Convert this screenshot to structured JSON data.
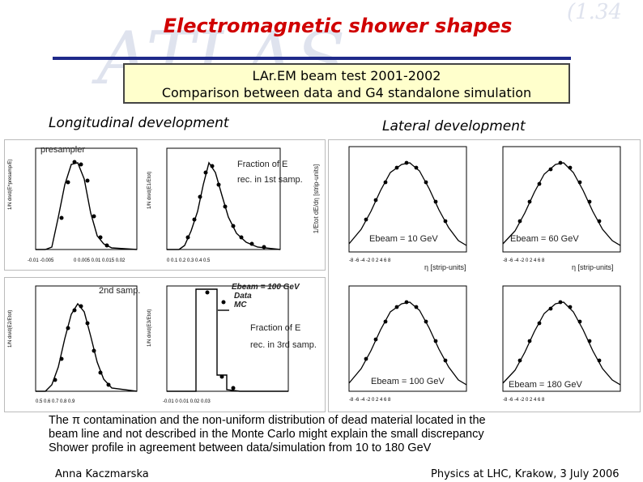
{
  "slide": {
    "title": "Electromagnetic shower shapes",
    "box_line1": "LAr.EM beam test 2001-2002",
    "box_line2": "Comparison between data and G4 standalone simulation",
    "long_heading": "Longitudinal development",
    "lat_heading": "Lateral development",
    "summary_line1": "The π contamination and the non-uniform distribution of dead material located in the",
    "summary_line2": "beam line and not described in the Monte Carlo might explain the small discrepancy",
    "summary_line3": "Shower profile in agreement between data/simulation from 10 to 180 GeV",
    "author": "Anna Kaczmarska",
    "venue": "Physics at LHC, Krakow,  3 July 2006"
  },
  "longitudinal": {
    "presampler_label": "presampler",
    "first_label_line1": "Fraction of E",
    "first_label_line2": "rec. in 1st samp.",
    "second_label": "2nd samp.",
    "third_label_line1": "Fraction of E",
    "third_label_line2": "rec. in 3rd samp.",
    "legend_energy": "Ebeam = 100 GeV",
    "legend_data": "Data",
    "legend_mc": "MC"
  },
  "lateral": {
    "xlabel": "η [strip-units]",
    "ylabel": "1/Etot dE/dη [strip-units]",
    "panels": [
      {
        "energy_label": "Ebeam = 10 GeV"
      },
      {
        "energy_label": "Ebeam = 60 GeV"
      },
      {
        "energy_label": "Ebeam = 100 GeV"
      },
      {
        "energy_label": "Ebeam = 180 GeV"
      }
    ]
  }
}
